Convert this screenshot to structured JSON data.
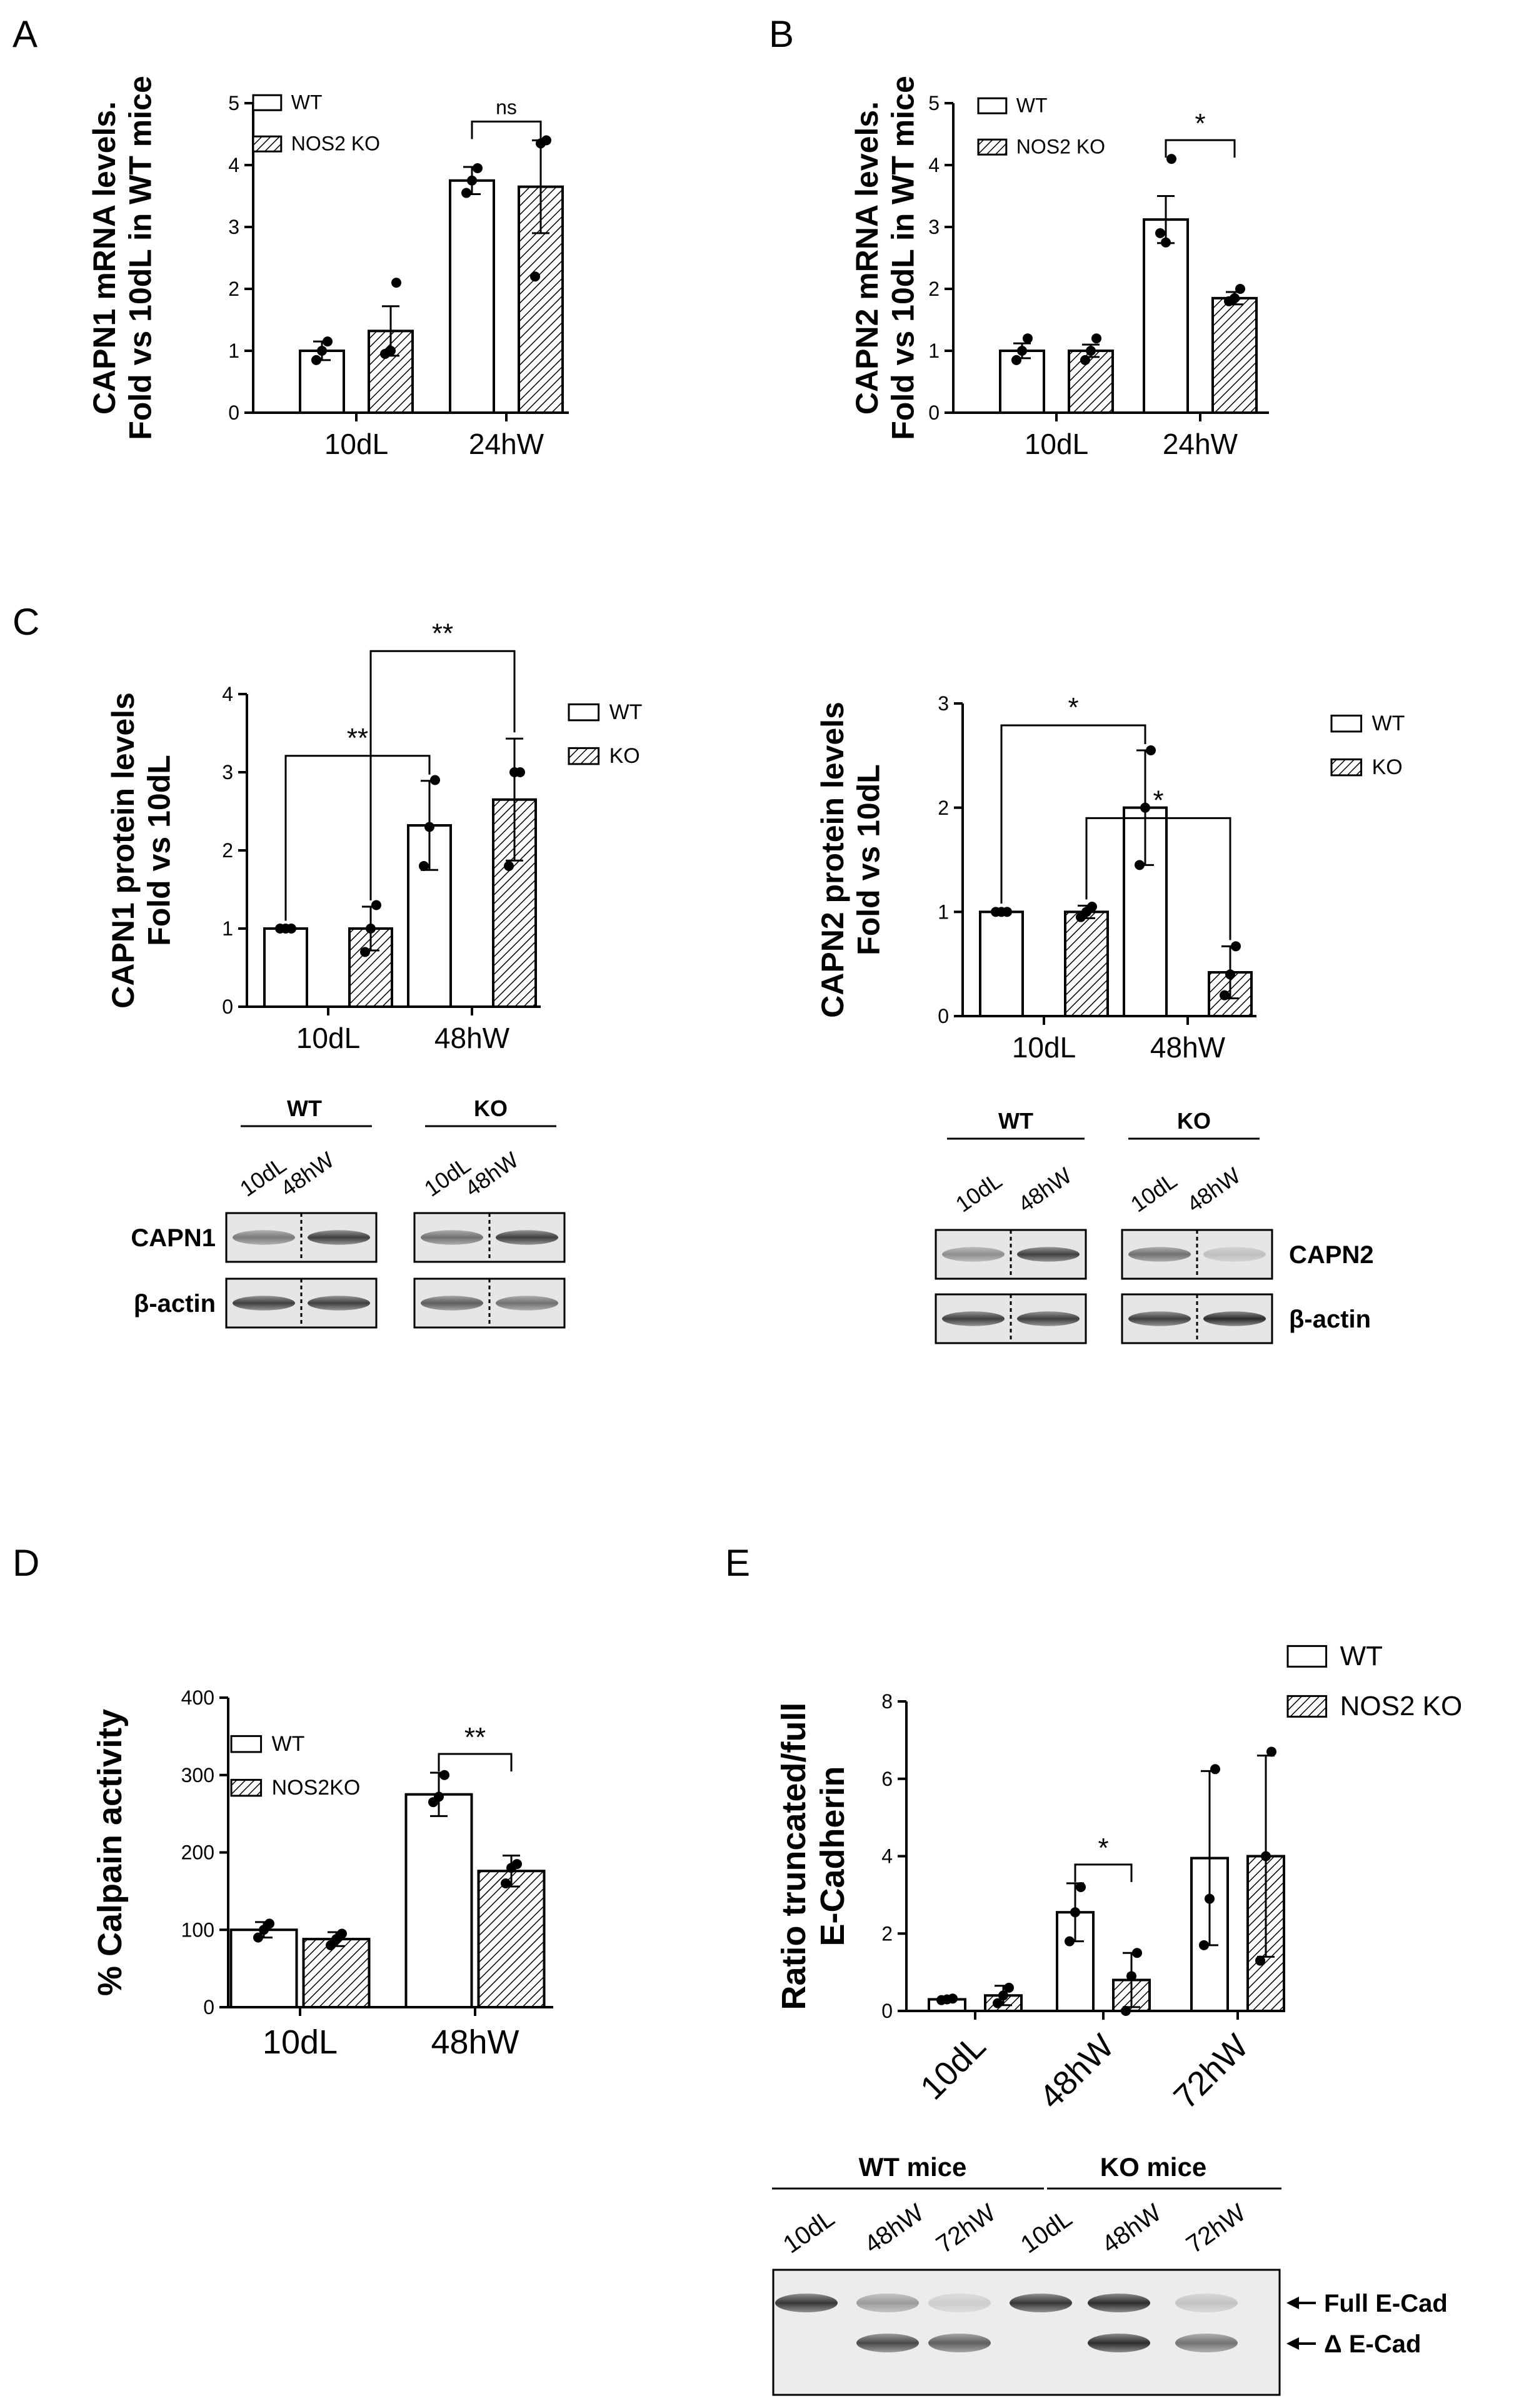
{
  "panels": {
    "A": {
      "letter": "A"
    },
    "B": {
      "letter": "B"
    },
    "C": {
      "letter": "C"
    },
    "D": {
      "letter": "D"
    },
    "E": {
      "letter": "E"
    }
  },
  "colors": {
    "wt_fill": "#ffffff",
    "ko_hatch": "#000000",
    "stroke": "#000000"
  },
  "chart_data": [
    {
      "id": "A",
      "type": "bar",
      "ylabel": [
        "CAPN1 mRNA levels.",
        "Fold vs 10dL in WT mice"
      ],
      "categories": [
        "10dL",
        "24hW"
      ],
      "ylim": [
        0,
        5
      ],
      "yticks": [
        0,
        1,
        2,
        3,
        4,
        5
      ],
      "legend": [
        "WT",
        "NOS2 KO"
      ],
      "series": [
        {
          "name": "WT",
          "values": [
            1.0,
            3.75
          ],
          "errors": [
            0.15,
            0.22
          ],
          "points": [
            [
              0.85,
              1.0,
              1.15
            ],
            [
              3.55,
              3.75,
              3.95
            ]
          ]
        },
        {
          "name": "NOS2 KO",
          "values": [
            1.32,
            3.65
          ],
          "errors": [
            0.4,
            0.75
          ],
          "points": [
            [
              0.95,
              1.0,
              2.1
            ],
            [
              2.2,
              4.35,
              4.4
            ]
          ]
        }
      ],
      "annotations": [
        {
          "text": "ns",
          "category": 1
        }
      ]
    },
    {
      "id": "B",
      "type": "bar",
      "ylabel": [
        "CAPN2 mRNA levels.",
        "Fold vs 10dL in WT mice"
      ],
      "categories": [
        "10dL",
        "24hW"
      ],
      "ylim": [
        0,
        5
      ],
      "yticks": [
        0,
        1,
        2,
        3,
        4,
        5
      ],
      "legend": [
        "WT",
        "NOS2 KO"
      ],
      "series": [
        {
          "name": "WT",
          "values": [
            1.0,
            3.12
          ],
          "errors": [
            0.12,
            0.38
          ],
          "points": [
            [
              0.85,
              1.0,
              1.2
            ],
            [
              2.9,
              2.75,
              4.1
            ]
          ]
        },
        {
          "name": "NOS2 KO",
          "values": [
            1.0,
            1.85
          ],
          "errors": [
            0.1,
            0.1
          ],
          "points": [
            [
              0.85,
              1.0,
              1.2
            ],
            [
              1.8,
              1.85,
              2.0
            ]
          ]
        }
      ],
      "annotations": [
        {
          "text": "*",
          "category": 1
        }
      ]
    },
    {
      "id": "C1",
      "type": "bar",
      "ylabel": [
        "CAPN1 protein levels",
        "Fold vs 10dL"
      ],
      "categories": [
        "10dL",
        "48hW"
      ],
      "ylim": [
        0,
        4
      ],
      "yticks": [
        0,
        1,
        2,
        3,
        4
      ],
      "legend": [
        "WT",
        "KO"
      ],
      "series": [
        {
          "name": "WT",
          "values": [
            1.0,
            2.32
          ],
          "errors": [
            0.02,
            0.57
          ],
          "points": [
            [
              1.0,
              1.0,
              1.0
            ],
            [
              1.8,
              2.3,
              2.9
            ]
          ]
        },
        {
          "name": "KO",
          "values": [
            1.0,
            2.65
          ],
          "errors": [
            0.28,
            0.78
          ],
          "points": [
            [
              0.7,
              1.0,
              1.3
            ],
            [
              1.8,
              3.0,
              3.0
            ]
          ]
        }
      ],
      "annotations": [
        {
          "text": "**",
          "from": "10dL-WT",
          "to": "48hW-WT"
        },
        {
          "text": "**",
          "from": "10dL-KO",
          "to": "48hW-KO"
        }
      ]
    },
    {
      "id": "C2",
      "type": "bar",
      "ylabel": [
        "CAPN2 protein levels",
        "Fold vs 10dL"
      ],
      "categories": [
        "10dL",
        "48hW"
      ],
      "ylim": [
        0,
        3
      ],
      "yticks": [
        0,
        1,
        2,
        3
      ],
      "legend": [
        "WT",
        "KO"
      ],
      "series": [
        {
          "name": "WT",
          "values": [
            1.0,
            2.0
          ],
          "errors": [
            0.02,
            0.55
          ],
          "points": [
            [
              1.0,
              1.0,
              1.0
            ],
            [
              1.45,
              2.0,
              2.55
            ]
          ]
        },
        {
          "name": "KO",
          "values": [
            1.0,
            0.42
          ],
          "errors": [
            0.06,
            0.25
          ],
          "points": [
            [
              0.95,
              1.0,
              1.05
            ],
            [
              0.2,
              0.4,
              0.67
            ]
          ]
        }
      ],
      "annotations": [
        {
          "text": "*",
          "from": "10dL-WT",
          "to": "48hW-WT"
        },
        {
          "text": "*",
          "from": "10dL-KO",
          "to": "48hW-KO"
        }
      ]
    },
    {
      "id": "D",
      "type": "bar",
      "ylabel": [
        "% Calpain activity"
      ],
      "categories": [
        "10dL",
        "48hW"
      ],
      "ylim": [
        0,
        400
      ],
      "yticks": [
        0,
        100,
        200,
        300,
        400
      ],
      "legend": [
        "WT",
        "NOS2KO"
      ],
      "series": [
        {
          "name": "WT",
          "values": [
            100,
            275
          ],
          "errors": [
            10,
            28
          ],
          "points": [
            [
              90,
              100,
              108
            ],
            [
              265,
              272,
              300
            ]
          ]
        },
        {
          "name": "NOS2KO",
          "values": [
            88,
            176
          ],
          "errors": [
            9,
            20
          ],
          "points": [
            [
              80,
              88,
              95
            ],
            [
              160,
              180,
              185
            ]
          ]
        }
      ],
      "annotations": [
        {
          "text": "**",
          "category": 1
        }
      ]
    },
    {
      "id": "E",
      "type": "bar",
      "ylabel": [
        "Ratio truncated/full",
        "E-Cadherin"
      ],
      "categories": [
        "10dL",
        "48hW",
        "72hW"
      ],
      "ylim": [
        0,
        8
      ],
      "yticks": [
        0,
        2,
        4,
        6,
        8
      ],
      "legend": [
        "WT",
        "NOS2 KO"
      ],
      "series": [
        {
          "name": "WT",
          "values": [
            0.3,
            2.55,
            3.95
          ],
          "errors": [
            0.03,
            0.75,
            2.25
          ],
          "points": [
            [
              0.28,
              0.3,
              0.32
            ],
            [
              1.8,
              2.55,
              3.2
            ],
            [
              1.7,
              2.9,
              6.25
            ]
          ]
        },
        {
          "name": "NOS2 KO",
          "values": [
            0.4,
            0.8,
            4.0
          ],
          "errors": [
            0.25,
            0.7,
            2.6
          ],
          "points": [
            [
              0.2,
              0.4,
              0.6
            ],
            [
              0.0,
              0.9,
              1.5
            ],
            [
              1.3,
              4.0,
              6.7
            ]
          ]
        }
      ],
      "annotations": [
        {
          "text": "*",
          "category": 1
        }
      ]
    }
  ],
  "blots": {
    "C1": {
      "group_labels": [
        "WT",
        "KO"
      ],
      "lane_labels": [
        "10dL",
        "48hW",
        "10dL",
        "48hW"
      ],
      "row_labels": [
        "CAPN1",
        "β-actin"
      ]
    },
    "C2": {
      "group_labels": [
        "WT",
        "KO"
      ],
      "lane_labels": [
        "10dL",
        "48hW",
        "10dL",
        "48hW"
      ],
      "row_labels": [
        "CAPN2",
        "β-actin"
      ]
    },
    "E": {
      "group_labels": [
        "WT mice",
        "KO mice"
      ],
      "lane_labels": [
        "10dL",
        "48hW",
        "72hW",
        "10dL",
        "48hW",
        "72hW"
      ],
      "band_labels": [
        "Full E-Cad",
        "Δ E-Cad"
      ]
    }
  }
}
